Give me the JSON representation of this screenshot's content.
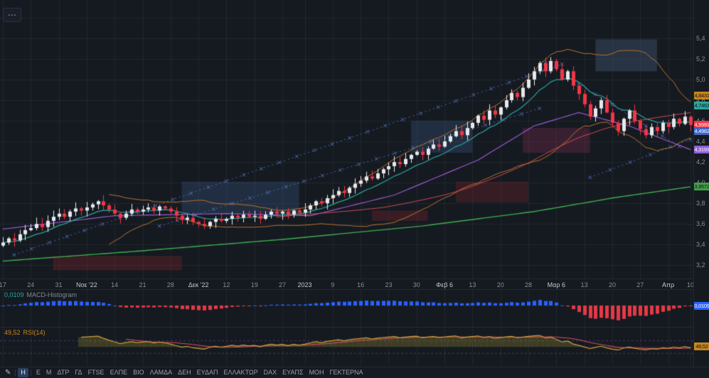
{
  "colors": {
    "background": "#151a21",
    "grid": "rgba(255,255,255,0.055)",
    "axis_text": "#878c97",
    "candle_up": "#e6e8ec",
    "candle_down": "#f23645",
    "bollinger": "#b8742c",
    "ma_green": "#3fae52",
    "ma_purple": "#9b59d0",
    "ma_red": "#d24a52",
    "ma_teal": "#2aa79b",
    "trendline": "#5b82d6",
    "macd_positive": "#2962ff",
    "macd_negative": "#e53945",
    "rsi_line": "#c9a13b",
    "rsi_ma": "#e05260",
    "rsi_fill_above": "rgba(154,140,46,0.30)",
    "rsi_fill_below": "rgba(148,52,60,0.22)",
    "rsi_band": "rgba(150,106,220,0.40)"
  },
  "chart_data": {
    "type": "candlestick",
    "view": {
      "top_price": 5.771,
      "bottom_price": 3.071
    },
    "series": {
      "name": "close",
      "closes": [
        3.42,
        3.46,
        3.44,
        3.5,
        3.54,
        3.56,
        3.6,
        3.57,
        3.63,
        3.67,
        3.7,
        3.67,
        3.72,
        3.75,
        3.73,
        3.76,
        3.79,
        3.82,
        3.78,
        3.74,
        3.7,
        3.66,
        3.7,
        3.74,
        3.72,
        3.74,
        3.76,
        3.73,
        3.77,
        3.75,
        3.72,
        3.68,
        3.64,
        3.66,
        3.62,
        3.6,
        3.58,
        3.62,
        3.65,
        3.63,
        3.65,
        3.68,
        3.66,
        3.69,
        3.67,
        3.68,
        3.65,
        3.69,
        3.72,
        3.7,
        3.72,
        3.69,
        3.73,
        3.71,
        3.74,
        3.78,
        3.82,
        3.8,
        3.85,
        3.88,
        3.92,
        3.9,
        3.95,
        3.99,
        4.02,
        4.06,
        4.04,
        4.09,
        4.13,
        4.16,
        4.2,
        4.18,
        4.23,
        4.27,
        4.3,
        4.27,
        4.33,
        4.37,
        4.35,
        4.4,
        4.45,
        4.5,
        4.46,
        4.53,
        4.58,
        4.65,
        4.61,
        4.7,
        4.66,
        4.73,
        4.8,
        4.87,
        4.83,
        4.92,
        5.0,
        5.08,
        5.16,
        5.08,
        5.18,
        5.1,
        5.0,
        5.08,
        4.94,
        4.86,
        4.76,
        4.64,
        4.72,
        4.8,
        4.68,
        4.58,
        4.5,
        4.62,
        4.7,
        4.6,
        4.52,
        4.46,
        4.54,
        4.5,
        4.58,
        4.54,
        4.62,
        4.57,
        4.64,
        4.56
      ]
    },
    "price_axis": {
      "ticks": [
        {
          "label": "5,4",
          "value": 5.4
        },
        {
          "label": "5,2",
          "value": 5.2
        },
        {
          "label": "5,0",
          "value": 5.0
        },
        {
          "label": "4,8",
          "value": 4.8
        },
        {
          "label": "4,6",
          "value": 4.6
        },
        {
          "label": "4,4",
          "value": 4.4
        },
        {
          "label": "4,2",
          "value": 4.2
        },
        {
          "label": "4,0",
          "value": 4.0
        },
        {
          "label": "3,8",
          "value": 3.8
        },
        {
          "label": "3,6",
          "value": 3.6
        },
        {
          "label": "3,4",
          "value": 3.4
        },
        {
          "label": "3,2",
          "value": 3.2
        }
      ],
      "badges": [
        {
          "name": "bollinger-upper-badge",
          "label": "4,8431",
          "value": 4.8431,
          "color": "#c8861d",
          "text_color": "#10141b"
        },
        {
          "name": "teal-ma-badge",
          "label": "4,7463",
          "value": 4.7463,
          "color": "#2aa79b",
          "text_color": "#10141b"
        },
        {
          "name": "last-price-badge",
          "label": "4,5591",
          "value": 4.5591,
          "color": "#f23645",
          "text_color": "#ffffff"
        },
        {
          "name": "blue-ma-badge",
          "label": "4,4982",
          "value": 4.4982,
          "color": "#3f63c8",
          "text_color": "#ffffff"
        },
        {
          "name": "purple-ma-badge",
          "label": "4,3193",
          "value": 4.3193,
          "color": "#8e5fd6",
          "text_color": "#ffffff"
        },
        {
          "name": "green-ma-badge",
          "label": "3,9572",
          "value": 3.9572,
          "color": "#43a047",
          "text_color": "#10141b"
        }
      ]
    },
    "time_axis": {
      "ticks": [
        {
          "label": "17",
          "i": 0,
          "strong": false
        },
        {
          "label": "24",
          "i": 5,
          "strong": false
        },
        {
          "label": "31",
          "i": 10,
          "strong": false
        },
        {
          "label": "Νοε '22",
          "i": 15,
          "strong": true
        },
        {
          "label": "14",
          "i": 20,
          "strong": false
        },
        {
          "label": "21",
          "i": 25,
          "strong": false
        },
        {
          "label": "28",
          "i": 30,
          "strong": false
        },
        {
          "label": "Δεκ '22",
          "i": 35,
          "strong": true
        },
        {
          "label": "12",
          "i": 40,
          "strong": false
        },
        {
          "label": "19",
          "i": 45,
          "strong": false
        },
        {
          "label": "27",
          "i": 50,
          "strong": false
        },
        {
          "label": "2023",
          "i": 54,
          "strong": true
        },
        {
          "label": "9",
          "i": 59,
          "strong": false
        },
        {
          "label": "16",
          "i": 64,
          "strong": false
        },
        {
          "label": "23",
          "i": 69,
          "strong": false
        },
        {
          "label": "30",
          "i": 74,
          "strong": false
        },
        {
          "label": "Φεβ 6",
          "i": 79,
          "strong": true
        },
        {
          "label": "13",
          "i": 84,
          "strong": false
        },
        {
          "label": "20",
          "i": 89,
          "strong": false
        },
        {
          "label": "28",
          "i": 94,
          "strong": false
        },
        {
          "label": "Μαρ 6",
          "i": 99,
          "strong": true
        },
        {
          "label": "13",
          "i": 104,
          "strong": false
        },
        {
          "label": "20",
          "i": 109,
          "strong": false
        },
        {
          "label": "27",
          "i": 114,
          "strong": false
        },
        {
          "label": "Απρ",
          "i": 119,
          "strong": true
        },
        {
          "label": "10",
          "i": 123,
          "strong": false
        }
      ]
    },
    "overlays": {
      "bollinger": {
        "period": 20,
        "mult": 2
      },
      "teal_ema_period": 10,
      "red_sma_period": 50,
      "green_ma": [
        [
          0,
          3.24
        ],
        [
          25,
          3.34
        ],
        [
          50,
          3.45
        ],
        [
          75,
          3.58
        ],
        [
          95,
          3.72
        ],
        [
          110,
          3.86
        ],
        [
          123,
          3.96
        ]
      ],
      "purple_ma": [
        [
          0,
          3.55
        ],
        [
          20,
          3.68
        ],
        [
          40,
          3.7
        ],
        [
          55,
          3.68
        ],
        [
          70,
          3.88
        ],
        [
          85,
          4.22
        ],
        [
          95,
          4.55
        ],
        [
          103,
          4.68
        ],
        [
          112,
          4.55
        ],
        [
          123,
          4.32
        ]
      ]
    },
    "zones": [
      {
        "i1": 9,
        "i2": 32,
        "p1": 3.15,
        "p2": 3.29,
        "color": "rgba(153,40,45,0.28)"
      },
      {
        "i1": 32,
        "i2": 53,
        "p1": 3.7,
        "p2": 4.01,
        "color": "rgba(68,103,158,0.26)"
      },
      {
        "i1": 66,
        "i2": 76,
        "p1": 3.63,
        "p2": 3.73,
        "color": "rgba(153,40,45,0.28)"
      },
      {
        "i1": 73,
        "i2": 84,
        "p1": 4.29,
        "p2": 4.6,
        "color": "rgba(68,103,158,0.26)"
      },
      {
        "i1": 81,
        "i2": 94,
        "p1": 3.81,
        "p2": 4.01,
        "color": "rgba(153,40,45,0.25)"
      },
      {
        "i1": 93,
        "i2": 105,
        "p1": 4.29,
        "p2": 4.53,
        "color": "rgba(142,48,85,0.30)"
      },
      {
        "i1": 106,
        "i2": 117,
        "p1": 5.08,
        "p2": 5.39,
        "color": "rgba(82,106,142,0.32)"
      }
    ],
    "trendlines": [
      {
        "i1": 2,
        "p1": 3.3,
        "i2": 100,
        "p2": 5.15
      },
      {
        "i1": 28,
        "p1": 3.58,
        "i2": 96,
        "p2": 4.72
      },
      {
        "i1": 97,
        "p1": 5.16,
        "i2": 121,
        "p2": 4.35
      },
      {
        "i1": 105,
        "p1": 4.05,
        "i2": 123,
        "p2": 4.42
      }
    ]
  },
  "indicators": {
    "macd": {
      "value_label": "0,0109",
      "name": "MACD-Histogram",
      "value": 0.0109,
      "badge_color": "#2962ff",
      "badge_text": "#ffffff"
    },
    "rsi": {
      "value_label": "49,52",
      "name": "RSI(14)",
      "value": 49.52,
      "badge_color": "#c8861d",
      "badge_text": "#10141b"
    }
  },
  "legend": {
    "collapsed_glyph": "⋯"
  },
  "toolbar": {
    "items": [
      {
        "type": "icon",
        "name": "pencil-icon",
        "glyph": "✎"
      },
      {
        "type": "sep"
      },
      {
        "type": "btn",
        "label": "Η",
        "active": true
      },
      {
        "type": "sep"
      },
      {
        "type": "btn",
        "label": "Ε"
      },
      {
        "type": "btn",
        "label": "Μ"
      },
      {
        "type": "btn",
        "label": "ΔΤΡ"
      },
      {
        "type": "btn",
        "label": "ΓΔ"
      },
      {
        "type": "btn",
        "label": "FTSE"
      },
      {
        "type": "btn",
        "label": "ΕΛΠΕ"
      },
      {
        "type": "btn",
        "label": "ΒΙΟ"
      },
      {
        "type": "btn",
        "label": "ΛΑΜΔΑ"
      },
      {
        "type": "btn",
        "label": "ΔΕΗ"
      },
      {
        "type": "btn",
        "label": "ΕΥΔΑΠ"
      },
      {
        "type": "btn",
        "label": "ΕΛΛΑΚΤΩΡ"
      },
      {
        "type": "btn",
        "label": "DAX"
      },
      {
        "type": "btn",
        "label": "ΕΥΑΠΣ"
      },
      {
        "type": "btn",
        "label": "ΜΟΗ"
      },
      {
        "type": "btn",
        "label": "ΓΕΚΤΕΡΝΑ"
      }
    ]
  }
}
